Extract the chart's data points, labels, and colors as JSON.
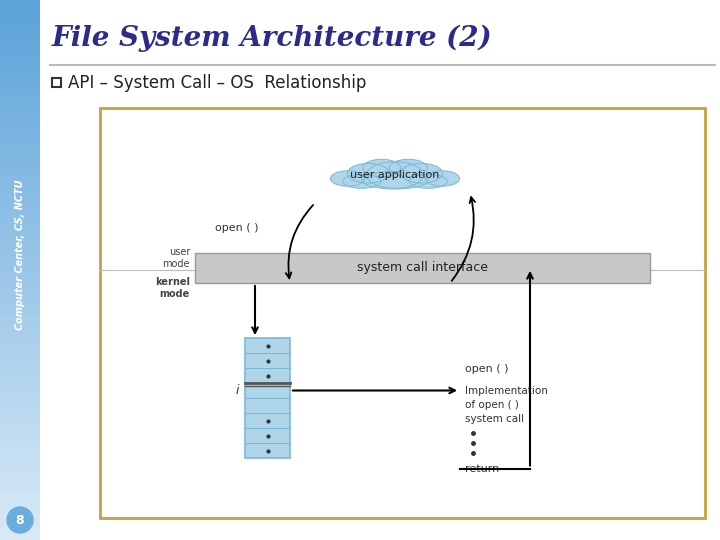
{
  "title": "File System Architecture (2)",
  "bullet": "API – System Call – OS  Relationship",
  "sidebar_text": "Computer Center, CS, NCTU",
  "page_number": "8",
  "bg_color": "#ffffff",
  "sidebar_color_top": "#5ba3d9",
  "sidebar_color_bottom": "#daeaf7",
  "title_color": "#2b2b8c",
  "diagram_border_color": "#c8a040",
  "diagram_bg": "#ffffff",
  "cloud_fill": "#aed6e8",
  "cloud_stroke": "#7ab8d8",
  "syscall_box_fill": "#c8c8c8",
  "syscall_box_stroke": "#aaaaaa",
  "table_fill": "#aed6e8",
  "table_stroke": "#7ab8d8",
  "separator_color": "#bbbbbb",
  "arrow_color": "#222222",
  "text_color": "#222222",
  "mode_label_color": "#444444"
}
